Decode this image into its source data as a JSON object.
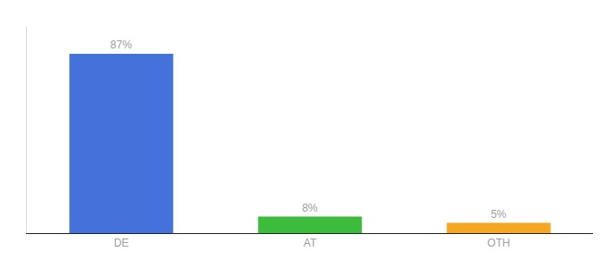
{
  "chart_data": {
    "type": "bar",
    "categories": [
      "DE",
      "AT",
      "OTH"
    ],
    "values": [
      87,
      8,
      5
    ],
    "value_labels": [
      "87%",
      "8%",
      "5%"
    ],
    "data_labels": true,
    "colors": [
      "#4472db",
      "#3dbb3d",
      "#f5a623"
    ],
    "ylim": [
      0,
      100
    ],
    "grid": false,
    "tick_labels": "x"
  }
}
